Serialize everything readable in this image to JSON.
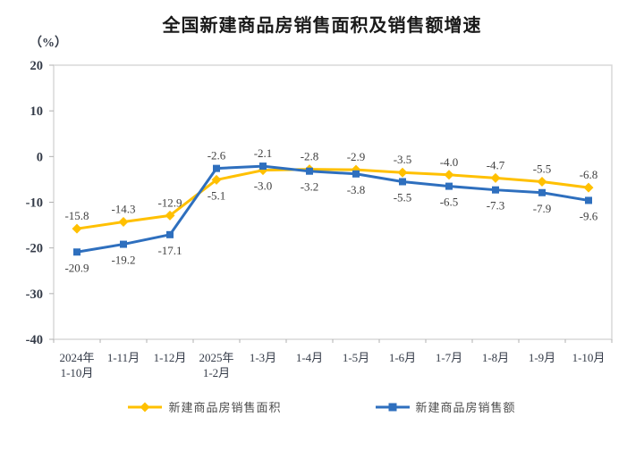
{
  "chart_data": {
    "type": "line",
    "title": "全国新建商品房销售面积及销售额增速",
    "ylabel": "（%）",
    "xlabel": "",
    "ylim": [
      -40,
      20
    ],
    "y_ticks": [
      20,
      10,
      0,
      -10,
      -20,
      -30,
      -40
    ],
    "grid": false,
    "legend_position": "bottom",
    "categories": [
      "2024年\n1-10月",
      "1-11月",
      "1-12月",
      "2025年\n1-2月",
      "1-3月",
      "1-4月",
      "1-5月",
      "1-6月",
      "1-7月",
      "1-8月",
      "1-9月",
      "1-10月"
    ],
    "series": [
      {
        "name": "新建商品房销售面积",
        "color": "#FFC000",
        "marker": "diamond",
        "values": [
          -15.8,
          -14.3,
          -12.9,
          -5.1,
          -3.0,
          -2.8,
          -2.9,
          -3.5,
          -4.0,
          -4.7,
          -5.5,
          -6.8
        ]
      },
      {
        "name": "新建商品房销售额",
        "color": "#2E6FBE",
        "marker": "square",
        "values": [
          -20.9,
          -19.2,
          -17.1,
          -2.6,
          -2.1,
          -3.2,
          -3.8,
          -5.5,
          -6.5,
          -7.3,
          -7.9,
          -9.6
        ]
      }
    ]
  },
  "colors": {
    "plot_border": "#d6d6d6",
    "tick_mark": "#b0b0b0",
    "axis_text": "#333a47",
    "data_label_text": "#3f3f3f",
    "title_text": "#1a1a1a",
    "legend_text": "#4d4d4d"
  }
}
